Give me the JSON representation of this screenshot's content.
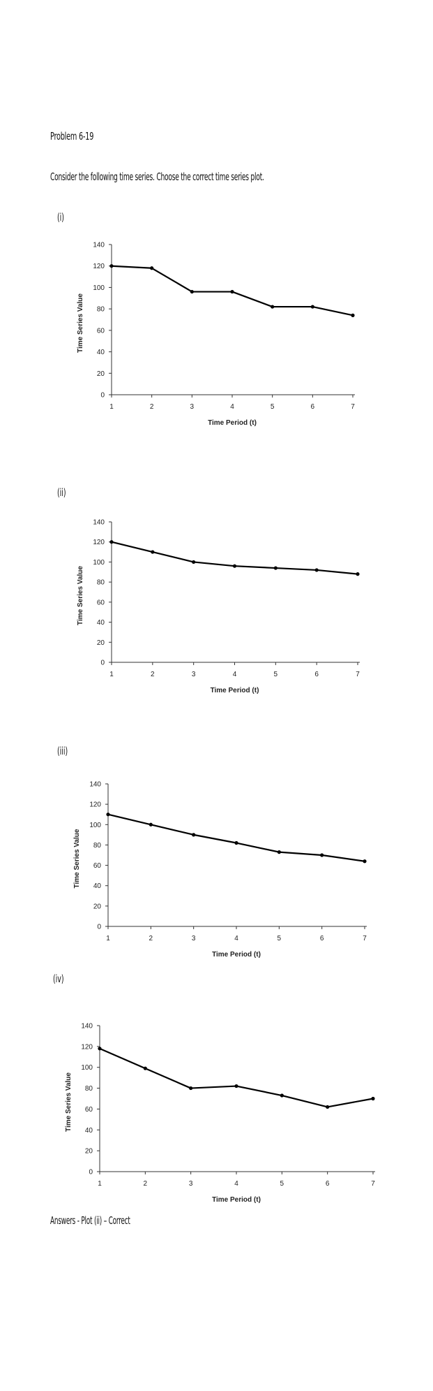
{
  "problem": {
    "title": "Problem 6-19",
    "instruction": "Consider the following time series.  Choose the correct time series plot."
  },
  "answer": {
    "text": "Answers -     Plot (ii) – Correct"
  },
  "line_color": "#000000",
  "chart_data": [
    {
      "type": "line",
      "label": "(i)",
      "x": [
        1,
        2,
        3,
        4,
        5,
        6,
        7
      ],
      "y": [
        120,
        118,
        96,
        96,
        82,
        82,
        74
      ],
      "xlabel": "Time Period (t)",
      "ylabel": "Time Series Value",
      "ylim": [
        0,
        140
      ],
      "yticks": [
        0,
        20,
        40,
        60,
        80,
        100,
        120,
        140
      ],
      "xticks": [
        1,
        2,
        3,
        4,
        5,
        6,
        7
      ],
      "grid": false
    },
    {
      "type": "line",
      "label": "(ii)",
      "x": [
        1,
        2,
        3,
        4,
        5,
        6,
        7
      ],
      "y": [
        120,
        110,
        100,
        96,
        94,
        92,
        88
      ],
      "xlabel": "Time Period (t)",
      "ylabel": "Time Series Value",
      "ylim": [
        0,
        140
      ],
      "yticks": [
        0,
        20,
        40,
        60,
        80,
        100,
        120,
        140
      ],
      "xticks": [
        1,
        2,
        3,
        4,
        5,
        6,
        7
      ],
      "grid": false
    },
    {
      "type": "line",
      "label": "(iii)",
      "x": [
        1,
        2,
        3,
        4,
        5,
        6,
        7
      ],
      "y": [
        110,
        100,
        90,
        82,
        73,
        70,
        64
      ],
      "xlabel": "Time Period (t)",
      "ylabel": "Time Series Value",
      "ylim": [
        0,
        140
      ],
      "yticks": [
        0,
        20,
        40,
        60,
        80,
        100,
        120,
        140
      ],
      "xticks": [
        1,
        2,
        3,
        4,
        5,
        6,
        7
      ],
      "grid": false
    },
    {
      "type": "line",
      "label": "(iv)",
      "x": [
        1,
        2,
        3,
        4,
        5,
        6,
        7
      ],
      "y": [
        118,
        99,
        80,
        82,
        73,
        62,
        70
      ],
      "xlabel": "Time Period (t)",
      "ylabel": "Time Series Value",
      "ylim": [
        0,
        140
      ],
      "yticks": [
        0,
        20,
        40,
        60,
        80,
        100,
        120,
        140
      ],
      "xticks": [
        1,
        2,
        3,
        4,
        5,
        6,
        7
      ],
      "grid": false
    }
  ]
}
